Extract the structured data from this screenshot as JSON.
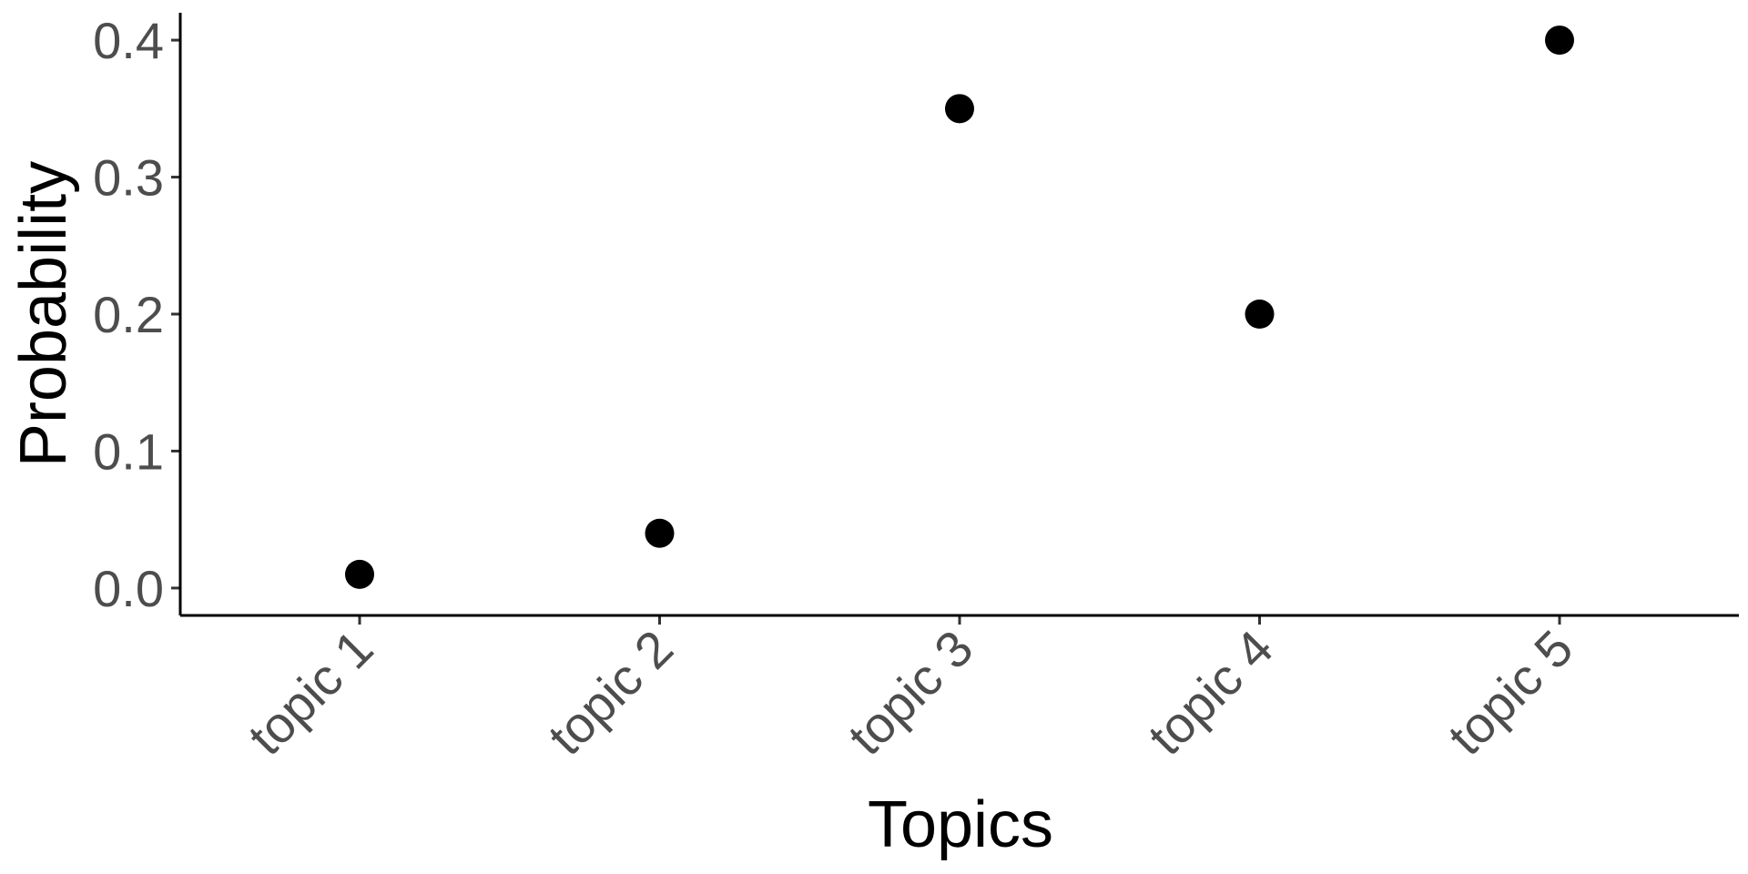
{
  "chart_data": {
    "type": "scatter",
    "categories": [
      "topic 1",
      "topic 2",
      "topic 3",
      "topic 4",
      "topic 5"
    ],
    "values": [
      0.01,
      0.04,
      0.35,
      0.2,
      0.4
    ],
    "xlabel": "Topics",
    "ylabel": "Probability",
    "yticks": [
      "0.0",
      "0.1",
      "0.2",
      "0.3",
      "0.4"
    ],
    "ylim": [
      -0.02,
      0.42
    ],
    "grid": false,
    "legend": "none",
    "point_color": "#000000"
  }
}
